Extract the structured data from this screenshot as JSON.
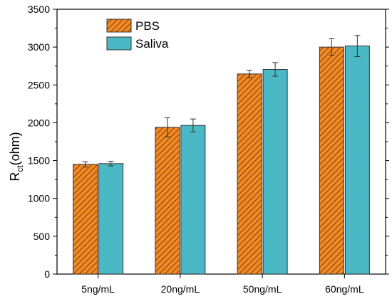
{
  "chart_data": {
    "type": "bar",
    "categories": [
      "5ng/mL",
      "20ng/mL",
      "50ng/mL",
      "60ng/mL"
    ],
    "series": [
      {
        "name": "PBS",
        "values": [
          1450,
          1940,
          2645,
          3000
        ],
        "errors": [
          35,
          125,
          50,
          110
        ],
        "color": "#F08A24",
        "pattern": "hatched"
      },
      {
        "name": "Saliva",
        "values": [
          1460,
          1965,
          2705,
          3015
        ],
        "errors": [
          30,
          85,
          90,
          140
        ],
        "color": "#4BB8C6",
        "pattern": "solid"
      }
    ],
    "ylabel_main": "R",
    "ylabel_sub": "ct",
    "ylabel_unit": "(ohm)",
    "ylim": [
      0,
      3500
    ],
    "yticks": [
      0,
      500,
      1000,
      1500,
      2000,
      2500,
      3000,
      3500
    ],
    "grid": false,
    "legend_position": "top-left"
  }
}
